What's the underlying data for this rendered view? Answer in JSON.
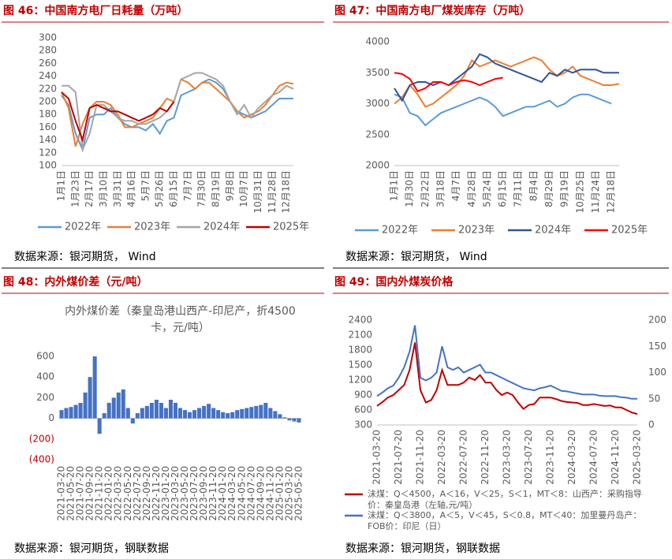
{
  "chart_data": [
    {
      "type": "line",
      "title": "图 46：中国南方电厂日耗量（万吨）",
      "source": "数据来源：银河期货， Wind",
      "categories": [
        "1月1日",
        null,
        "1月23日",
        null,
        "2月17日",
        null,
        "3月10日",
        null,
        "3月31日",
        null,
        "4月16日",
        null,
        "5月7日",
        null,
        "5月26日",
        null,
        "6月15日",
        null,
        "7月7日",
        null,
        "7月30日",
        null,
        "8月19日",
        null,
        "9月8日",
        null,
        "10月7日",
        null,
        "10月31日",
        null,
        "11月28日",
        null,
        "12月18日",
        null
      ],
      "ylim": [
        100,
        300
      ],
      "yticks": [
        100,
        120,
        140,
        160,
        180,
        200,
        220,
        240,
        260,
        280,
        300
      ],
      "legend": "bottom",
      "series": [
        {
          "name": "2022年",
          "color": "#5b9bd5",
          "values": [
            210,
            195,
            150,
            125,
            175,
            180,
            180,
            190,
            175,
            165,
            160,
            160,
            155,
            165,
            150,
            170,
            175,
            210,
            215,
            220,
            230,
            235,
            230,
            220,
            200,
            185,
            180,
            175,
            180,
            185,
            195,
            205,
            205,
            205
          ]
        },
        {
          "name": "2023年",
          "color": "#ed7d31",
          "values": [
            215,
            190,
            130,
            165,
            190,
            200,
            200,
            195,
            180,
            160,
            160,
            165,
            170,
            175,
            190,
            205,
            200,
            235,
            230,
            220,
            230,
            230,
            220,
            210,
            200,
            185,
            175,
            180,
            185,
            195,
            210,
            225,
            230,
            228
          ]
        },
        {
          "name": "2024年",
          "color": "#a5a5a5",
          "values": [
            225,
            225,
            215,
            125,
            150,
            195,
            195,
            185,
            175,
            170,
            170,
            165,
            165,
            170,
            175,
            185,
            200,
            235,
            240,
            245,
            245,
            240,
            235,
            225,
            200,
            180,
            195,
            175,
            190,
            200,
            210,
            215,
            225,
            220
          ]
        },
        {
          "name": "2025年",
          "color": "#c00000",
          "values": [
            215,
            205,
            170,
            140,
            190,
            195,
            190,
            185,
            185,
            180,
            175,
            170,
            175,
            180,
            190,
            185,
            200,
            null,
            null,
            null,
            null,
            null,
            null,
            null,
            null,
            null,
            null,
            null,
            null,
            null,
            null,
            null,
            null,
            null
          ]
        }
      ]
    },
    {
      "type": "line",
      "title": "图 47：中国南方电厂煤炭库存（万吨）",
      "source": "数据来源：银河期货， Wind",
      "categories": [
        "1月1日",
        null,
        "1月30日",
        null,
        "2月22日",
        null,
        "3月18日",
        null,
        "4月7日",
        null,
        "4月28日",
        null,
        "5月24日",
        null,
        "6月15日",
        null,
        "7月11日",
        null,
        "8月4日",
        null,
        "8月29日",
        null,
        "9月19日",
        null,
        "10月25日",
        null,
        "11月24日",
        null,
        "12月18日",
        null
      ],
      "ylim": [
        2000,
        4000
      ],
      "yticks": [
        2000,
        2500,
        3000,
        3500,
        4000
      ],
      "legend": "bottom",
      "series": [
        {
          "name": "2022年",
          "color": "#5b9bd5",
          "values": [
            3150,
            3100,
            2850,
            2800,
            2650,
            2750,
            2850,
            2900,
            2950,
            3000,
            3050,
            3100,
            3050,
            2950,
            2800,
            2850,
            2900,
            2950,
            2950,
            3000,
            3050,
            2950,
            3000,
            3100,
            3150,
            3150,
            3100,
            3050,
            3000,
            null
          ]
        },
        {
          "name": "2023年",
          "color": "#ed7d31",
          "values": [
            3000,
            3100,
            3300,
            3150,
            2950,
            3000,
            3100,
            3200,
            3300,
            3450,
            3700,
            3600,
            3650,
            3700,
            3650,
            3600,
            3650,
            3700,
            3750,
            3700,
            3550,
            3450,
            3500,
            3600,
            3450,
            3400,
            3350,
            3300,
            3300,
            3320
          ]
        },
        {
          "name": "2024年",
          "color": "#2f5597",
          "values": [
            3250,
            3050,
            3300,
            3350,
            3350,
            3300,
            3350,
            3300,
            3400,
            3500,
            3600,
            3800,
            3750,
            3650,
            3600,
            3550,
            3500,
            3450,
            3400,
            3350,
            3500,
            3450,
            3550,
            3500,
            3550,
            3550,
            3550,
            3500,
            3500,
            3500
          ]
        },
        {
          "name": "2025年",
          "color": "#ff0000",
          "values": [
            3500,
            3480,
            3400,
            3200,
            3250,
            3350,
            3350,
            3300,
            3350,
            3380,
            3350,
            3300,
            3350,
            3400,
            3420,
            null,
            null,
            null,
            null,
            null,
            null,
            null,
            null,
            null,
            null,
            null,
            null,
            null,
            null,
            null
          ]
        }
      ]
    },
    {
      "type": "bar",
      "title": "图 48：内外煤价差（元/吨）",
      "source": "数据来源：银河期货，钢联数据",
      "subtitle": "内外煤价差（秦皇岛港山西产-印尼产，折4500卡，元/吨）",
      "color": "#4472c4",
      "categories": [
        "2021-03-20",
        null,
        "2021-05-20",
        null,
        "2021-07-20",
        null,
        "2021-09-20",
        null,
        "2021-11-20",
        null,
        "2022-01-20",
        null,
        "2022-03-20",
        null,
        "2022-05-20",
        null,
        "2022-07-20",
        null,
        "2022-09-20",
        null,
        "2022-11-20",
        null,
        "2023-01-20",
        null,
        "2023-03-20",
        null,
        "2023-05-20",
        null,
        "2023-07-20",
        null,
        "2023-09-20",
        null,
        "2023-11-20",
        null,
        "2024-01-20",
        null,
        "2024-03-20",
        null,
        "2024-05-20",
        null,
        "2024-07-20",
        null,
        "2024-09-20",
        null,
        "2024-11-20",
        null,
        "2025-01-20",
        null,
        "2025-03-20",
        null,
        "2025-05-20"
      ],
      "values": [
        80,
        100,
        110,
        130,
        150,
        250,
        400,
        600,
        -150,
        50,
        150,
        200,
        250,
        280,
        100,
        -50,
        50,
        100,
        120,
        150,
        180,
        150,
        100,
        180,
        150,
        100,
        80,
        60,
        80,
        100,
        120,
        140,
        100,
        80,
        60,
        50,
        60,
        80,
        90,
        100,
        110,
        120,
        130,
        150,
        100,
        70,
        40,
        10,
        -20,
        -30,
        -40
      ],
      "ylim": [
        -400,
        600
      ],
      "yticks": [
        {
          "value": -400,
          "label": "(400)"
        },
        {
          "value": -200,
          "label": "(200)"
        },
        0,
        200,
        400,
        600
      ]
    },
    {
      "type": "line",
      "title": "图 49：国内外煤炭价格",
      "source": "数据来源：银河期货，钢联数据",
      "categories": [
        "2021-03-20",
        null,
        null,
        null,
        "2021-07-20",
        null,
        null,
        null,
        "2021-11-20",
        null,
        null,
        null,
        "2022-03-20",
        null,
        null,
        null,
        "2022-07-20",
        null,
        null,
        null,
        "2022-11-20",
        null,
        null,
        null,
        "2023-03-20",
        null,
        null,
        null,
        "2023-07-20",
        null,
        null,
        null,
        "2023-11-20",
        null,
        null,
        null,
        "2024-03-20",
        null,
        null,
        null,
        "2024-07-20",
        null,
        null,
        null,
        "2024-11-20",
        null,
        null,
        null,
        "2025-03-20"
      ],
      "ylim": [
        300,
        2400
      ],
      "yticks": [
        300,
        600,
        900,
        1200,
        1500,
        1800,
        2100,
        2400
      ],
      "y2lim": [
        0,
        200
      ],
      "y2ticks": [
        0,
        50,
        100,
        150,
        200
      ],
      "legend": "bottom-rows",
      "series": [
        {
          "name": "沫煤：Q＜4500，A＜16，V＜25，S＜1，MT＜8：山西产：采购指导价：秦皇岛港（左轴,元/吨）",
          "color": "#c00000",
          "values": [
            680,
            760,
            850,
            900,
            1000,
            1100,
            1400,
            1950,
            1000,
            750,
            800,
            1000,
            1400,
            1100,
            1100,
            1100,
            1150,
            1250,
            1200,
            1300,
            1150,
            1150,
            1000,
            900,
            950,
            900,
            750,
            620,
            700,
            720,
            850,
            850,
            850,
            820,
            780,
            760,
            750,
            740,
            700,
            700,
            720,
            700,
            680,
            690,
            650,
            650,
            600,
            550,
            520
          ]
        },
        {
          "name": "沫煤：Q＜3800，A＜5，V＜45，S＜0.8，MT＜40：加里曼丹岛产：FOB价：印尼（日）",
          "color": "#4472c4",
          "axis": "y2",
          "values": [
            55,
            62,
            70,
            75,
            90,
            110,
            140,
            190,
            90,
            85,
            90,
            100,
            150,
            110,
            105,
            110,
            100,
            105,
            110,
            115,
            100,
            100,
            95,
            90,
            85,
            80,
            75,
            70,
            68,
            66,
            70,
            72,
            75,
            70,
            65,
            64,
            62,
            60,
            58,
            58,
            58,
            56,
            55,
            55,
            55,
            53,
            52,
            50,
            50
          ]
        }
      ]
    }
  ]
}
